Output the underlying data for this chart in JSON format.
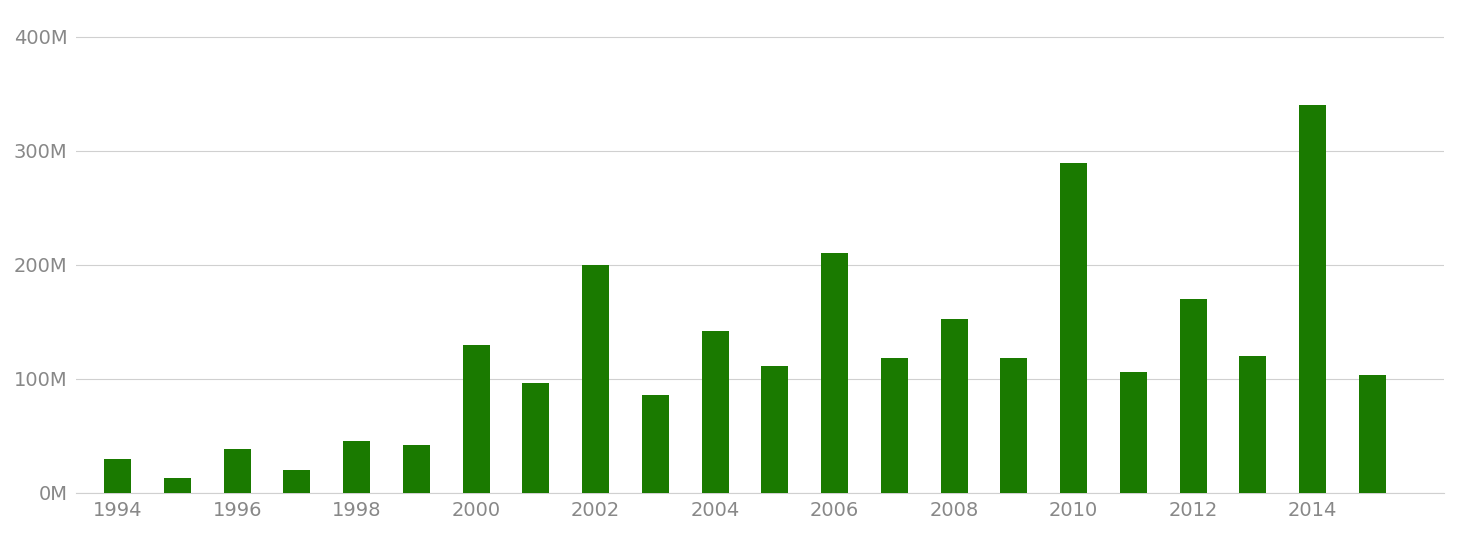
{
  "years": [
    1994,
    1995,
    1996,
    1997,
    1998,
    1999,
    2000,
    2001,
    2002,
    2003,
    2004,
    2005,
    2006,
    2007,
    2008,
    2009,
    2010,
    2011,
    2012,
    2013,
    2014,
    2015
  ],
  "values": [
    30000000,
    13000000,
    38000000,
    20000000,
    45000000,
    42000000,
    130000000,
    96000000,
    200000000,
    86000000,
    142000000,
    111000000,
    210000000,
    118000000,
    152000000,
    118000000,
    289000000,
    106000000,
    170000000,
    120000000,
    340000000,
    103000000
  ],
  "bar_color": "#1a7a00",
  "background_color": "#ffffff",
  "ytick_labels": [
    "0M",
    "100M",
    "200M",
    "300M",
    "400M"
  ],
  "ytick_values": [
    0,
    100000000,
    200000000,
    300000000,
    400000000
  ],
  "xtick_labels": [
    "1994",
    "1996",
    "1998",
    "2000",
    "2002",
    "2004",
    "2006",
    "2008",
    "2010",
    "2012",
    "2014"
  ],
  "xtick_positions": [
    1994,
    1996,
    1998,
    2000,
    2002,
    2004,
    2006,
    2008,
    2010,
    2012,
    2014
  ],
  "ylim": [
    0,
    420000000
  ],
  "grid_color": "#d0d0d0",
  "tick_color": "#888888",
  "bar_width": 0.45,
  "xlim_left": 1993.3,
  "xlim_right": 2016.2
}
